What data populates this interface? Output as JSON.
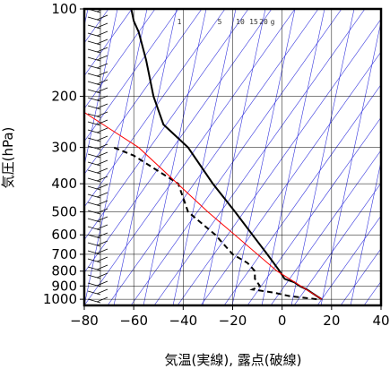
{
  "chart_data": {
    "type": "line",
    "title": "",
    "xlabel": "気温(実線), 露点(破線)",
    "ylabel": "気圧(hPa)",
    "xlim": [
      -80,
      40
    ],
    "ylim": [
      1050,
      100
    ],
    "y_scale": "log",
    "grid": true,
    "x_ticks": [
      -80,
      -60,
      -40,
      -20,
      0,
      20,
      40
    ],
    "x_tick_labels": [
      "−80",
      "−60",
      "−40",
      "−20",
      "0",
      "20",
      "40"
    ],
    "y_ticks": [
      100,
      200,
      300,
      400,
      500,
      600,
      700,
      800,
      900,
      1000
    ],
    "y_tick_labels": [
      "100",
      "200",
      "300",
      "400",
      "500",
      "600",
      "700",
      "800",
      "900",
      "1000"
    ],
    "mixing_ratio_labels": [
      "1",
      "5",
      "10",
      "15",
      "20",
      "g"
    ],
    "series": [
      {
        "style": "solid",
        "color": "#000000",
        "points": [
          [
            16,
            1000
          ],
          [
            14,
            975
          ],
          [
            12,
            950
          ],
          [
            10,
            925
          ],
          [
            7,
            900
          ],
          [
            5,
            875
          ],
          [
            1,
            850
          ],
          [
            -1,
            800
          ],
          [
            -6,
            700
          ],
          [
            -12,
            600
          ],
          [
            -19,
            500
          ],
          [
            -28,
            400
          ],
          [
            -38,
            300
          ],
          [
            -48,
            250
          ],
          [
            -52,
            200
          ],
          [
            -55,
            150
          ],
          [
            -58,
            120
          ],
          [
            -60,
            110
          ],
          [
            -61,
            100
          ]
        ]
      },
      {
        "style": "dashed",
        "color": "#000000",
        "points": [
          [
            14,
            1000
          ],
          [
            3,
            975
          ],
          [
            -3,
            950
          ],
          [
            -12,
            925
          ],
          [
            -9,
            900
          ],
          [
            -11,
            850
          ],
          [
            -11,
            800
          ],
          [
            -14,
            750
          ],
          [
            -20,
            700
          ],
          [
            -27,
            600
          ],
          [
            -38,
            500
          ],
          [
            -42,
            400
          ],
          [
            -60,
            320
          ],
          [
            -68,
            300
          ]
        ]
      },
      {
        "style": "solid",
        "color": "#ff0000",
        "points": [
          [
            16,
            1000
          ],
          [
            -2,
            800
          ],
          [
            -30,
            500
          ],
          [
            -58,
            300
          ],
          [
            -90,
            200
          ]
        ]
      }
    ],
    "colors": {
      "temperature": "#000000",
      "dewpoint": "#000000",
      "parcel": "#ff0000",
      "guide_lines": "#3333dd",
      "grid": "#000000"
    }
  }
}
